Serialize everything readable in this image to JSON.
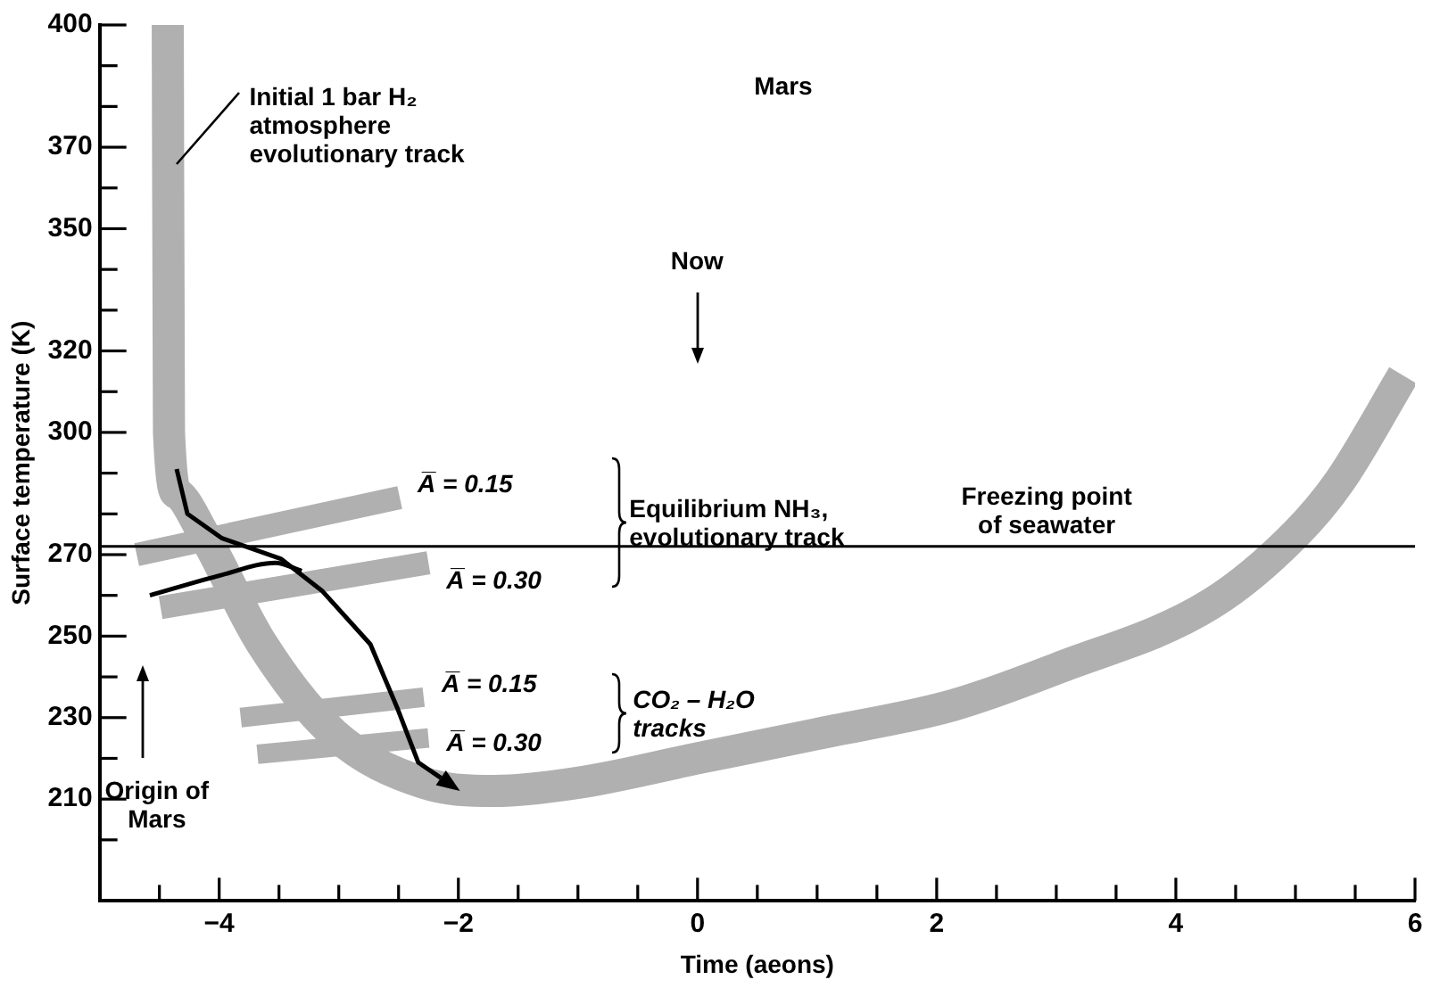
{
  "chart_data": {
    "type": "line",
    "title": "Mars",
    "xlabel": "Time (aeons)",
    "ylabel": "Surface temperature (K)",
    "xlim": [
      -5,
      6
    ],
    "ylim": [
      185,
      400
    ],
    "xticks": [
      {
        "value": -4.5,
        "label": null
      },
      {
        "value": -4,
        "label": "−4"
      },
      {
        "value": -3.5,
        "label": null
      },
      {
        "value": -3,
        "label": null
      },
      {
        "value": -2.5,
        "label": null
      },
      {
        "value": -2,
        "label": "−2"
      },
      {
        "value": -1.5,
        "label": null
      },
      {
        "value": -1,
        "label": null
      },
      {
        "value": -0.5,
        "label": null
      },
      0,
      {
        "value": 0.5,
        "label": null
      },
      {
        "value": 1,
        "label": null
      },
      {
        "value": 1.5,
        "label": null
      },
      2,
      {
        "value": 2.5,
        "label": null
      },
      {
        "value": 3,
        "label": null
      },
      {
        "value": 3.5,
        "label": null
      },
      4,
      {
        "value": 4.5,
        "label": null
      },
      {
        "value": 5,
        "label": null
      },
      {
        "value": 5.5,
        "label": null
      },
      6
    ],
    "yticks": [
      {
        "value": 200,
        "label": null
      },
      210,
      {
        "value": 220,
        "label": null
      },
      230,
      {
        "value": 240,
        "label": null
      },
      250,
      {
        "value": 260,
        "label": null
      },
      270,
      {
        "value": 280,
        "label": null
      },
      {
        "value": 290,
        "label": null
      },
      300,
      {
        "value": 310,
        "label": null
      },
      320,
      {
        "value": 330,
        "label": null
      },
      {
        "value": 340,
        "label": null
      },
      350,
      {
        "value": 360,
        "label": null
      },
      370,
      {
        "value": 380,
        "label": null
      },
      {
        "value": 390,
        "label": null
      },
      400
    ],
    "grid": false,
    "legend": false,
    "series": [
      {
        "color": "#b0b0b0",
        "x": [
          -4.43,
          -4.42,
          -4.35,
          -4.13,
          -3.64,
          -3.04,
          -2.29,
          -1.7,
          -1,
          0,
          1,
          2.13,
          3,
          4.3,
          5,
          5.37,
          5.9
        ],
        "values": [
          400,
          300,
          285,
          275,
          248,
          226,
          214,
          212,
          214,
          220,
          226,
          233,
          242,
          258,
          275,
          288,
          314
        ]
      },
      {
        "name": "A̅ = 0.15",
        "color": "#b0b0b0",
        "x": [
          -4.69,
          -2.49
        ],
        "values": [
          270,
          284
        ]
      },
      {
        "name": "A̅ = 0.30",
        "color": "#b0b0b0",
        "x": [
          -4.49,
          -2.25
        ],
        "values": [
          257,
          268
        ]
      },
      {
        "name": "A̅ = 0.15",
        "color": "#b0b0b0",
        "x": [
          -3.82,
          -2.29
        ],
        "values": [
          230,
          235
        ]
      },
      {
        "name": "A̅ = 0.30",
        "color": "#b0b0b0",
        "x": [
          -3.68,
          -2.25
        ],
        "values": [
          221,
          225
        ]
      },
      {
        "color": "#000000",
        "x": [
          -4.58,
          -3.98,
          -3.53,
          -3.31
        ],
        "values": [
          260,
          265,
          268,
          266
        ]
      }
    ],
    "ref_lines": [
      {
        "axis": "y",
        "value": 272,
        "label": "Freezing point of seawater",
        "color": "#000000"
      }
    ],
    "annotations": [
      {
        "text": "Initial 1 bar H₂ atmosphere evolutionary track",
        "x": -4.42,
        "y": 366
      },
      "Now",
      "Equilibrium NH₃, evolutionary track",
      "CO₂ – H₂O tracks",
      "Origin of Mars"
    ]
  }
}
